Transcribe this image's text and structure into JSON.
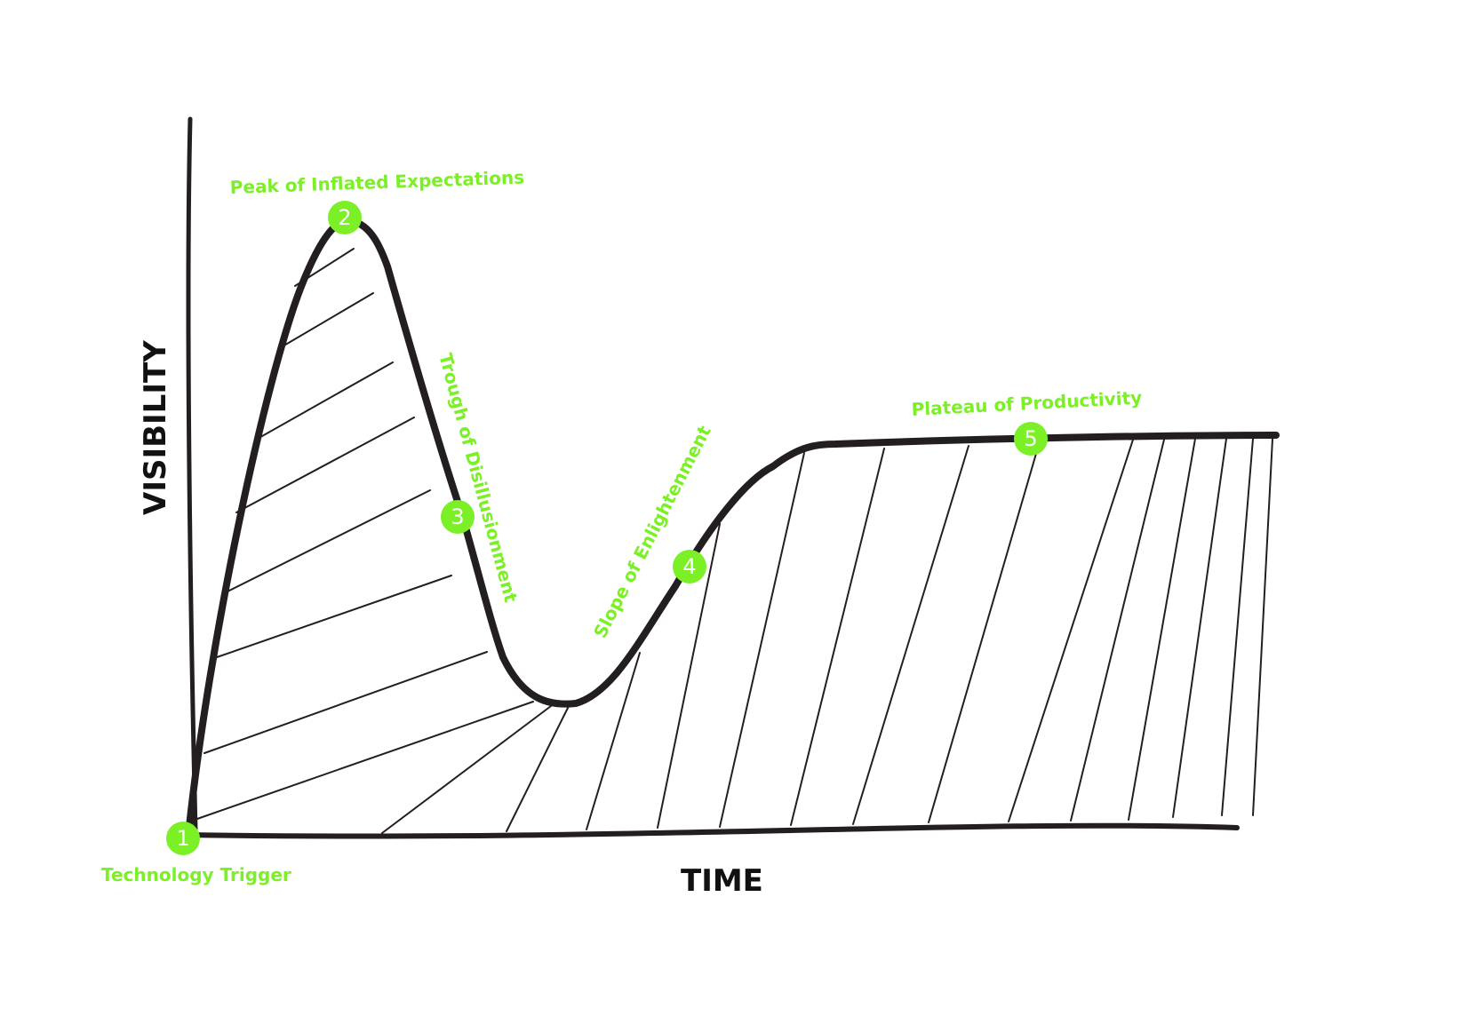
{
  "axes": {
    "x_label": "TIME",
    "y_label": "VISIBILITY"
  },
  "phases": [
    {
      "number": "1",
      "label": "Technology Trigger"
    },
    {
      "number": "2",
      "label": "Peak of Inflated Expectations"
    },
    {
      "number": "3",
      "label": "Trough of Disillusionment"
    },
    {
      "number": "4",
      "label": "Slope of Enlightenment"
    },
    {
      "number": "5",
      "label": "Plateau of Productivity"
    }
  ],
  "colors": {
    "accent": "#7cf026",
    "ink": "#231f20"
  }
}
